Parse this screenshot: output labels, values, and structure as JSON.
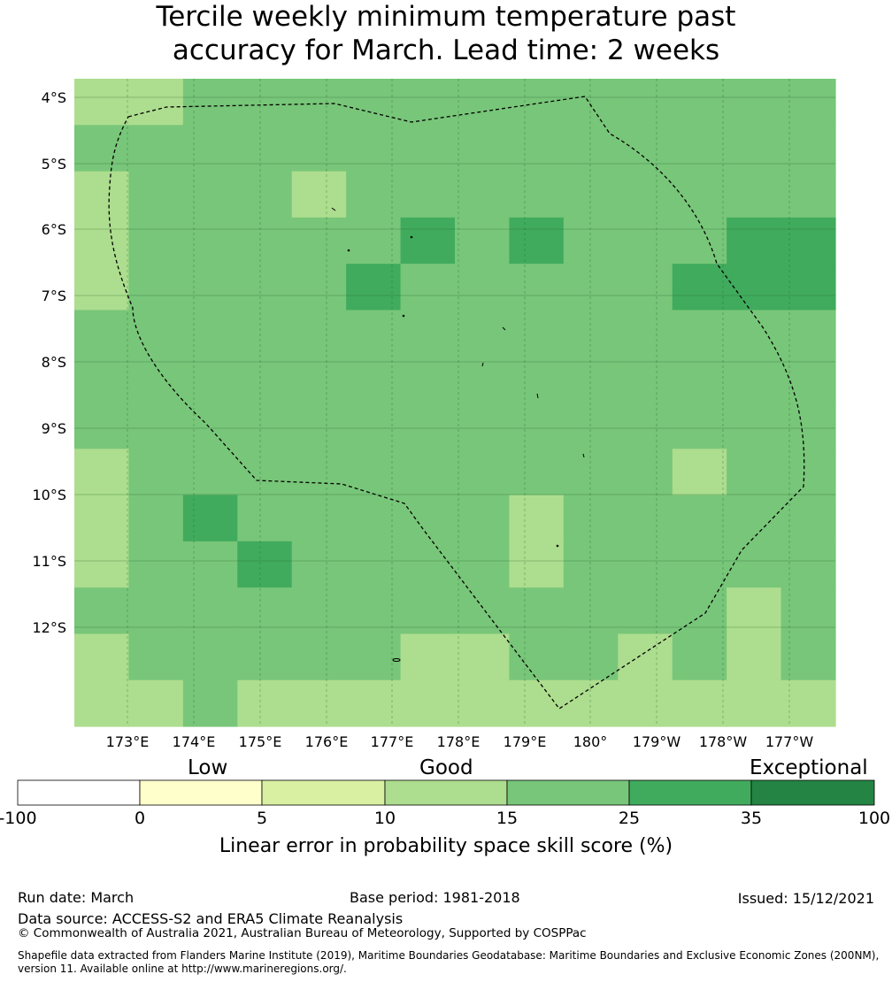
{
  "title": {
    "line1": "Tercile weekly minimum temperature past",
    "line2": "accuracy for March. Lead time: 2 weeks"
  },
  "map": {
    "lat_labels": [
      "4°S",
      "5°S",
      "6°S",
      "7°S",
      "8°S",
      "9°S",
      "10°S",
      "11°S",
      "12°S"
    ],
    "lon_labels": [
      "173°E",
      "174°E",
      "175°E",
      "176°E",
      "177°E",
      "178°E",
      "179°E",
      "180°",
      "179°W",
      "178°W",
      "177°W"
    ],
    "grid_cols": 14,
    "grid_rows": 14,
    "grid_values": [
      [
        3,
        3,
        4,
        4,
        4,
        4,
        4,
        4,
        4,
        4,
        4,
        4,
        4,
        4
      ],
      [
        4,
        4,
        4,
        4,
        4,
        4,
        4,
        4,
        4,
        4,
        4,
        4,
        4,
        4
      ],
      [
        3,
        4,
        4,
        4,
        3,
        4,
        4,
        4,
        4,
        4,
        4,
        4,
        4,
        4
      ],
      [
        3,
        4,
        4,
        4,
        4,
        4,
        5,
        4,
        5,
        4,
        4,
        4,
        5,
        5
      ],
      [
        3,
        4,
        4,
        4,
        4,
        5,
        4,
        4,
        4,
        4,
        4,
        5,
        5,
        5
      ],
      [
        4,
        4,
        4,
        4,
        4,
        4,
        4,
        4,
        4,
        4,
        4,
        4,
        4,
        4
      ],
      [
        4,
        4,
        4,
        4,
        4,
        4,
        4,
        4,
        4,
        4,
        4,
        4,
        4,
        4
      ],
      [
        4,
        4,
        4,
        4,
        4,
        4,
        4,
        4,
        4,
        4,
        4,
        4,
        4,
        4
      ],
      [
        3,
        4,
        4,
        4,
        4,
        4,
        4,
        4,
        4,
        4,
        4,
        3,
        4,
        4
      ],
      [
        3,
        4,
        5,
        4,
        4,
        4,
        4,
        4,
        3,
        4,
        4,
        4,
        4,
        4
      ],
      [
        3,
        4,
        4,
        5,
        4,
        4,
        4,
        4,
        3,
        4,
        4,
        4,
        4,
        4
      ],
      [
        4,
        4,
        4,
        4,
        4,
        4,
        4,
        4,
        4,
        4,
        4,
        4,
        3,
        4
      ],
      [
        3,
        4,
        4,
        4,
        4,
        4,
        3,
        3,
        4,
        4,
        3,
        4,
        3,
        4
      ],
      [
        3,
        3,
        4,
        3,
        3,
        3,
        3,
        3,
        3,
        3,
        3,
        3,
        3,
        3
      ]
    ],
    "color_index_note": "0:<0 1:0-5 2:5-10 3:10-15 4:15-25 5:25-35 6:35-100"
  },
  "colorbar": {
    "categories": {
      "low": "Low",
      "good": "Good",
      "exceptional": "Exceptional"
    },
    "ticks": [
      "-100",
      "0",
      "5",
      "10",
      "15",
      "25",
      "35",
      "100"
    ],
    "colors": [
      "#ffffff",
      "#ffffcc",
      "#d9f0a3",
      "#addd8e",
      "#78c679",
      "#41ab5d",
      "#238443"
    ],
    "label": "Linear error in probability space skill score (%)"
  },
  "footer": {
    "run_date": "Run date: March",
    "base_period": "Base period: 1981-2018",
    "issued": "Issued: 15/12/2021",
    "data_source": "Data source: ACCESS-S2 and ERA5 Climate Reanalysis",
    "copyright": "© Commonwealth of Australia 2021, Australian Bureau of Meteorology, Supported by COSPPac",
    "shapefile": "Shapefile data extracted from Flanders Marine Institute (2019), Maritime Boundaries Geodatabase: Maritime Boundaries and Exclusive Economic Zones (200NM), version 11. Available online at http://www.marineregions.org/."
  }
}
